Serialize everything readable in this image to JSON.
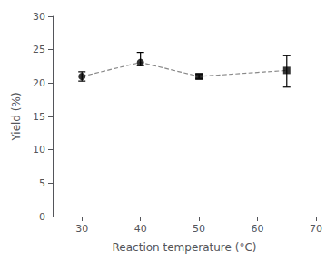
{
  "chart_data": {
    "type": "line",
    "x": [
      30,
      40,
      50,
      65
    ],
    "values": [
      21.0,
      23.1,
      21.0,
      21.9
    ],
    "yerr_lower": [
      0.7,
      0.5,
      0.3,
      2.5
    ],
    "yerr_upper": [
      0.7,
      1.5,
      0.3,
      2.2
    ],
    "marker": [
      "circle",
      "circle",
      "square",
      "square"
    ],
    "color": "#888888",
    "colors": [
      "black",
      "black",
      "black",
      "black"
    ],
    "line_style": "dashed",
    "xlabel": "Reaction temperature (°C)",
    "ylabel": "Yield (%)",
    "xlim": [
      25,
      70
    ],
    "ylim": [
      0,
      30
    ],
    "xticks": [
      30,
      40,
      50,
      60,
      70
    ],
    "yticks": [
      0,
      5,
      10,
      15,
      20,
      25,
      30
    ],
    "grid": false
  }
}
